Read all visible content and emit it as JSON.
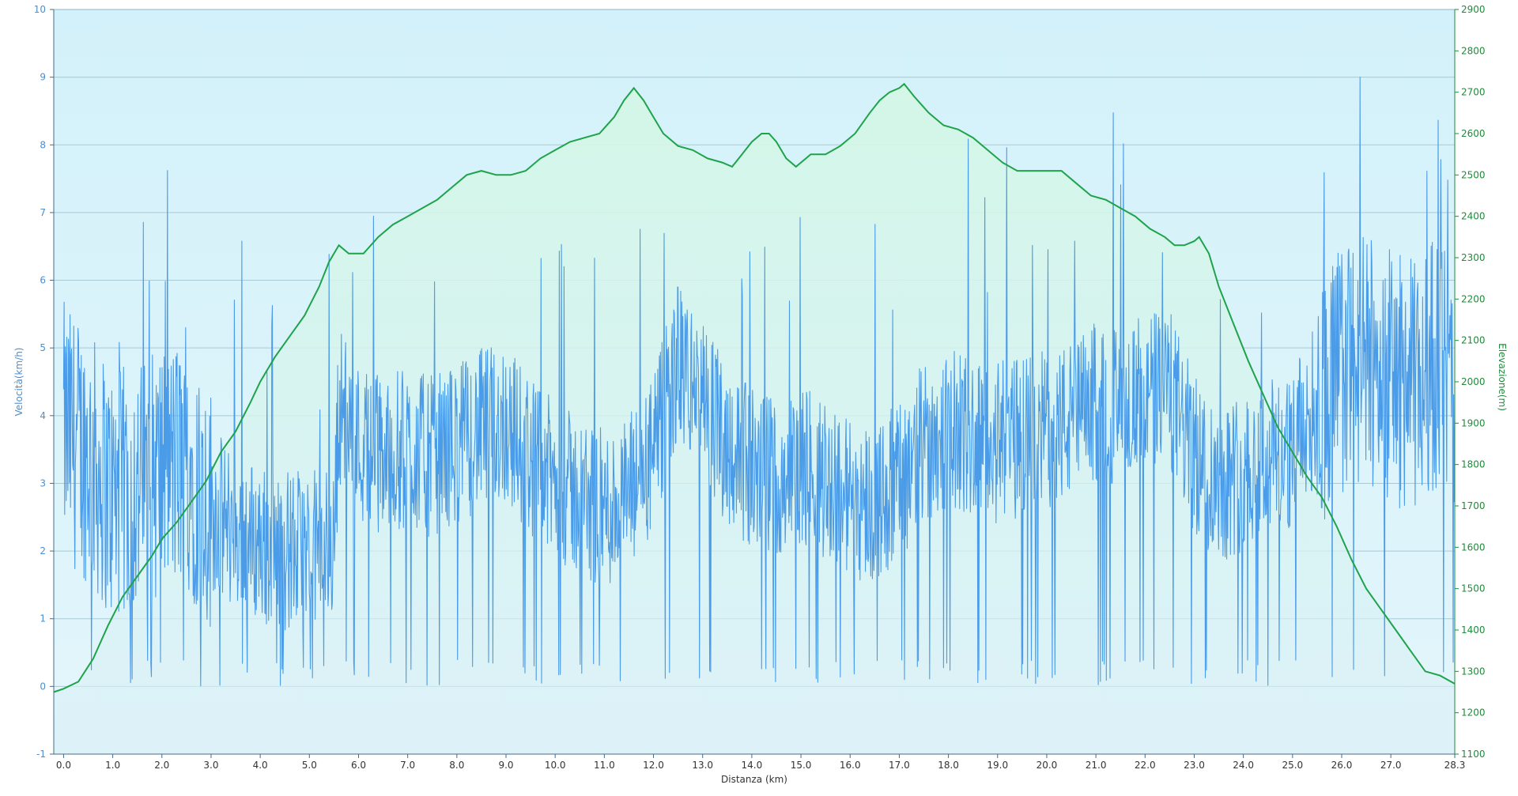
{
  "colors": {
    "speed": "#4a9be8",
    "elevation": "#1fa34a",
    "left_axis": "#4a8fd0",
    "right_axis": "#1e8c3a",
    "plot_bg_top": "#d3f1fa",
    "plot_bg_bottom": "#e6f7fc",
    "elevation_fill": "#d8f5ea",
    "grid": "#a9c9d6"
  },
  "chart_data": {
    "type": "line",
    "title": "",
    "xlabel": "Distanza  (km)",
    "ylabel_left": "Velocità(km/h)",
    "ylabel_right": "Elevazione(m)",
    "xlim": [
      -0.2,
      28.3
    ],
    "ylim_left": [
      -1,
      10
    ],
    "ylim_right": [
      1100,
      2900
    ],
    "grid": "horizontal",
    "x_ticks": [
      "0.0",
      "1.0",
      "2.0",
      "3.0",
      "4.0",
      "5.0",
      "6.0",
      "7.0",
      "8.0",
      "9.0",
      "10.0",
      "11.0",
      "12.0",
      "13.0",
      "14.0",
      "15.0",
      "16.0",
      "17.0",
      "18.0",
      "19.0",
      "20.0",
      "21.0",
      "22.0",
      "23.0",
      "24.0",
      "25.0",
      "26.0",
      "27.0",
      "28.3"
    ],
    "x_tick_values": [
      0,
      1,
      2,
      3,
      4,
      5,
      6,
      7,
      8,
      9,
      10,
      11,
      12,
      13,
      14,
      15,
      16,
      17,
      18,
      19,
      20,
      21,
      22,
      23,
      24,
      25,
      26,
      27,
      28.3
    ],
    "y_ticks_left": [
      "-1",
      "0",
      "1",
      "2",
      "3",
      "4",
      "5",
      "6",
      "7",
      "8",
      "9",
      "10"
    ],
    "y_tick_values_left": [
      -1,
      0,
      1,
      2,
      3,
      4,
      5,
      6,
      7,
      8,
      9,
      10
    ],
    "y_ticks_right": [
      "1100",
      "1200",
      "1300",
      "1400",
      "1500",
      "1600",
      "1700",
      "1800",
      "1900",
      "2000",
      "2100",
      "2200",
      "2300",
      "2400",
      "2500",
      "2600",
      "2700",
      "2800",
      "2900"
    ],
    "y_tick_values_right": [
      1100,
      1200,
      1300,
      1400,
      1500,
      1600,
      1700,
      1800,
      1900,
      2000,
      2100,
      2200,
      2300,
      2400,
      2500,
      2600,
      2700,
      2800,
      2900
    ],
    "series": [
      {
        "axis": "right",
        "x": [
          -0.2,
          0.0,
          0.3,
          0.6,
          0.9,
          1.2,
          1.5,
          1.8,
          2.0,
          2.3,
          2.6,
          2.9,
          3.2,
          3.5,
          3.8,
          4.0,
          4.3,
          4.6,
          4.9,
          5.2,
          5.4,
          5.6,
          5.8,
          6.1,
          6.4,
          6.7,
          7.0,
          7.3,
          7.6,
          7.9,
          8.2,
          8.5,
          8.8,
          9.1,
          9.4,
          9.7,
          10.0,
          10.3,
          10.6,
          10.9,
          11.2,
          11.4,
          11.6,
          11.8,
          12.0,
          12.2,
          12.5,
          12.8,
          13.1,
          13.4,
          13.6,
          13.8,
          14.0,
          14.2,
          14.35,
          14.5,
          14.7,
          14.9,
          15.0,
          15.2,
          15.5,
          15.8,
          16.1,
          16.4,
          16.6,
          16.8,
          17.0,
          17.1,
          17.3,
          17.6,
          17.9,
          18.2,
          18.5,
          18.8,
          19.1,
          19.4,
          19.7,
          20.0,
          20.3,
          20.6,
          20.9,
          21.2,
          21.5,
          21.8,
          22.1,
          22.4,
          22.6,
          22.8,
          23.0,
          23.1,
          23.3,
          23.5,
          23.8,
          24.1,
          24.4,
          24.7,
          25.0,
          25.3,
          25.6,
          25.9,
          26.2,
          26.5,
          26.8,
          27.1,
          27.4,
          27.7,
          28.0,
          28.3
        ],
        "y": [
          1250,
          1258,
          1275,
          1330,
          1410,
          1480,
          1530,
          1580,
          1620,
          1660,
          1710,
          1760,
          1830,
          1880,
          1950,
          2000,
          2060,
          2110,
          2160,
          2230,
          2290,
          2330,
          2310,
          2310,
          2350,
          2380,
          2400,
          2420,
          2440,
          2470,
          2500,
          2510,
          2500,
          2500,
          2510,
          2540,
          2560,
          2580,
          2590,
          2600,
          2640,
          2680,
          2710,
          2680,
          2640,
          2600,
          2570,
          2560,
          2540,
          2530,
          2520,
          2550,
          2580,
          2600,
          2600,
          2580,
          2540,
          2520,
          2530,
          2550,
          2550,
          2570,
          2600,
          2650,
          2680,
          2700,
          2710,
          2720,
          2690,
          2650,
          2620,
          2610,
          2590,
          2560,
          2530,
          2510,
          2510,
          2510,
          2510,
          2480,
          2450,
          2440,
          2420,
          2400,
          2370,
          2350,
          2330,
          2330,
          2340,
          2350,
          2310,
          2230,
          2140,
          2050,
          1970,
          1890,
          1830,
          1770,
          1720,
          1650,
          1570,
          1500,
          1450,
          1400,
          1350,
          1300,
          1290,
          1270
        ]
      },
      {
        "axis": "left",
        "note_levels": "mean speed profile along route",
        "x": [
          0.0,
          0.5,
          1.0,
          1.5,
          2.0,
          2.5,
          3.0,
          3.5,
          4.0,
          4.5,
          5.0,
          5.5,
          5.6,
          6.0,
          6.5,
          7.0,
          7.5,
          8.0,
          8.5,
          9.0,
          9.5,
          10.0,
          10.5,
          11.0,
          11.5,
          12.0,
          12.5,
          13.0,
          13.5,
          14.0,
          14.5,
          15.0,
          15.5,
          16.0,
          16.5,
          17.0,
          17.5,
          18.0,
          18.5,
          19.0,
          19.5,
          20.0,
          20.5,
          21.0,
          21.5,
          22.0,
          22.5,
          23.0,
          23.5,
          24.0,
          24.5,
          25.0,
          25.5,
          26.0,
          26.5,
          27.0,
          27.5,
          28.0,
          28.3
        ],
        "y": [
          3.8,
          3.4,
          2.8,
          2.9,
          3.2,
          3.3,
          2.6,
          2.3,
          2.1,
          2.0,
          2.0,
          2.1,
          4.2,
          3.6,
          3.4,
          3.5,
          3.4,
          3.6,
          3.8,
          3.9,
          3.4,
          3.0,
          2.8,
          2.6,
          2.8,
          3.4,
          4.8,
          4.2,
          3.6,
          3.2,
          3.1,
          3.2,
          3.1,
          2.8,
          2.7,
          3.0,
          3.6,
          3.8,
          3.7,
          3.6,
          3.7,
          3.8,
          3.9,
          4.2,
          4.1,
          4.3,
          4.4,
          3.4,
          3.0,
          3.2,
          3.4,
          3.5,
          4.2,
          4.7,
          4.8,
          4.6,
          4.4,
          4.9,
          4.0
        ]
      }
    ]
  }
}
